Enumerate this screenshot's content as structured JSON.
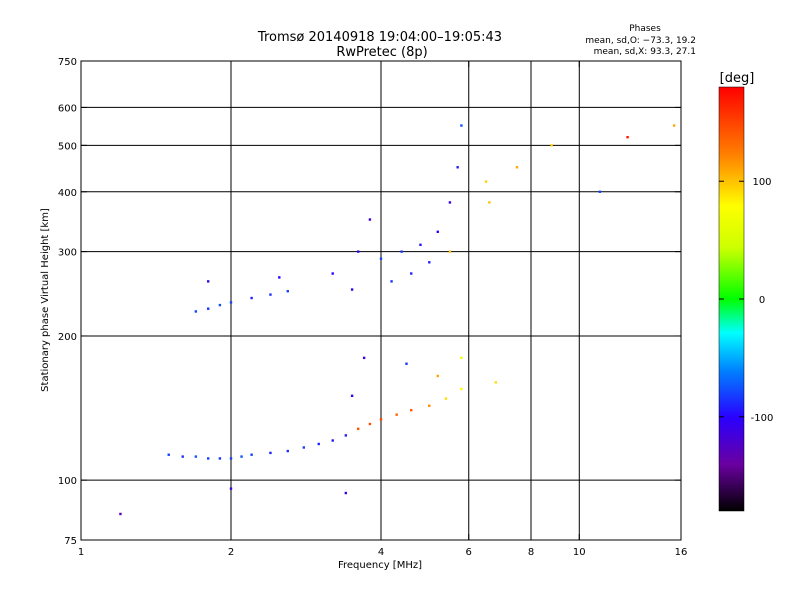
{
  "chart_data": {
    "type": "scatter",
    "title": "Tromsø 20140918 19:04:00–19:05:43",
    "subtitle": "RwPretec (8p)",
    "xlabel": "Frequency [MHz]",
    "ylabel": "Stationary phase Virtual Height [km]",
    "x_scale": "log",
    "y_scale": "log",
    "xlim": [
      1,
      16
    ],
    "ylim": [
      75,
      750
    ],
    "x_ticks": [
      1,
      2,
      4,
      6,
      8,
      10,
      16
    ],
    "y_ticks": [
      75,
      100,
      200,
      300,
      400,
      500,
      600,
      750
    ],
    "x_grid": [
      2,
      4,
      6,
      8,
      10
    ],
    "y_grid": [
      100,
      200,
      300,
      400,
      500,
      600
    ],
    "grid": true,
    "phase_box": {
      "heading": "Phases",
      "line1": "mean, sd,O: −73.3, 19.2",
      "line2": "mean, sd,X:  93.3, 27.1"
    },
    "colorbar": {
      "label": "[deg]",
      "range": [
        -180,
        180
      ],
      "ticks": [
        100,
        0,
        -100
      ],
      "placement": "right"
    },
    "series": [
      {
        "points": [
          {
            "x": 1.5,
            "y": 113,
            "phase": -80
          },
          {
            "x": 1.6,
            "y": 112,
            "phase": -85
          },
          {
            "x": 1.7,
            "y": 112,
            "phase": -75
          },
          {
            "x": 1.8,
            "y": 111,
            "phase": -80
          },
          {
            "x": 1.9,
            "y": 111,
            "phase": -85
          },
          {
            "x": 2.0,
            "y": 111,
            "phase": -80
          },
          {
            "x": 2.1,
            "y": 112,
            "phase": -75
          },
          {
            "x": 2.2,
            "y": 113,
            "phase": -80
          },
          {
            "x": 2.4,
            "y": 114,
            "phase": -90
          },
          {
            "x": 2.6,
            "y": 115,
            "phase": -85
          },
          {
            "x": 2.8,
            "y": 117,
            "phase": -80
          },
          {
            "x": 3.0,
            "y": 119,
            "phase": -90
          },
          {
            "x": 3.2,
            "y": 121,
            "phase": -95
          },
          {
            "x": 3.4,
            "y": 124,
            "phase": -90
          },
          {
            "x": 3.6,
            "y": 128,
            "phase": 140
          },
          {
            "x": 3.8,
            "y": 131,
            "phase": 145
          },
          {
            "x": 4.0,
            "y": 134,
            "phase": 150
          },
          {
            "x": 4.3,
            "y": 137,
            "phase": 135
          },
          {
            "x": 4.6,
            "y": 140,
            "phase": 140
          },
          {
            "x": 5.0,
            "y": 143,
            "phase": 120
          },
          {
            "x": 5.4,
            "y": 148,
            "phase": 90
          },
          {
            "x": 5.8,
            "y": 155,
            "phase": 80
          },
          {
            "x": 1.7,
            "y": 225,
            "phase": -80
          },
          {
            "x": 1.8,
            "y": 228,
            "phase": -85
          },
          {
            "x": 1.9,
            "y": 232,
            "phase": -75
          },
          {
            "x": 2.0,
            "y": 235,
            "phase": -80
          },
          {
            "x": 2.2,
            "y": 240,
            "phase": -90
          },
          {
            "x": 2.4,
            "y": 244,
            "phase": -85
          },
          {
            "x": 2.6,
            "y": 248,
            "phase": -80
          },
          {
            "x": 1.8,
            "y": 260,
            "phase": -110
          },
          {
            "x": 2.5,
            "y": 265,
            "phase": -100
          },
          {
            "x": 3.2,
            "y": 270,
            "phase": -100
          },
          {
            "x": 3.5,
            "y": 250,
            "phase": -110
          },
          {
            "x": 3.6,
            "y": 300,
            "phase": -105
          },
          {
            "x": 3.8,
            "y": 350,
            "phase": -115
          },
          {
            "x": 4.0,
            "y": 290,
            "phase": -80
          },
          {
            "x": 4.4,
            "y": 300,
            "phase": -85
          },
          {
            "x": 4.8,
            "y": 310,
            "phase": -95
          },
          {
            "x": 5.2,
            "y": 330,
            "phase": -100
          },
          {
            "x": 5.5,
            "y": 380,
            "phase": -110
          },
          {
            "x": 5.7,
            "y": 450,
            "phase": -90
          },
          {
            "x": 5.8,
            "y": 550,
            "phase": -75
          },
          {
            "x": 4.2,
            "y": 260,
            "phase": -85
          },
          {
            "x": 4.6,
            "y": 270,
            "phase": -90
          },
          {
            "x": 5.0,
            "y": 285,
            "phase": -90
          },
          {
            "x": 5.5,
            "y": 300,
            "phase": 100
          },
          {
            "x": 6.5,
            "y": 420,
            "phase": 95
          },
          {
            "x": 6.6,
            "y": 380,
            "phase": 100
          },
          {
            "x": 7.5,
            "y": 450,
            "phase": 110
          },
          {
            "x": 8.8,
            "y": 500,
            "phase": 95
          },
          {
            "x": 3.5,
            "y": 150,
            "phase": -110
          },
          {
            "x": 3.7,
            "y": 180,
            "phase": -115
          },
          {
            "x": 4.5,
            "y": 175,
            "phase": -85
          },
          {
            "x": 5.2,
            "y": 165,
            "phase": 110
          },
          {
            "x": 5.8,
            "y": 180,
            "phase": 70
          },
          {
            "x": 6.8,
            "y": 160,
            "phase": 90
          },
          {
            "x": 1.2,
            "y": 85,
            "phase": -130
          },
          {
            "x": 2.0,
            "y": 96,
            "phase": -110
          },
          {
            "x": 3.4,
            "y": 94,
            "phase": -110
          },
          {
            "x": 12.5,
            "y": 520,
            "phase": 170
          },
          {
            "x": 11.0,
            "y": 400,
            "phase": -80
          },
          {
            "x": 15.5,
            "y": 550,
            "phase": 110
          }
        ]
      }
    ]
  }
}
